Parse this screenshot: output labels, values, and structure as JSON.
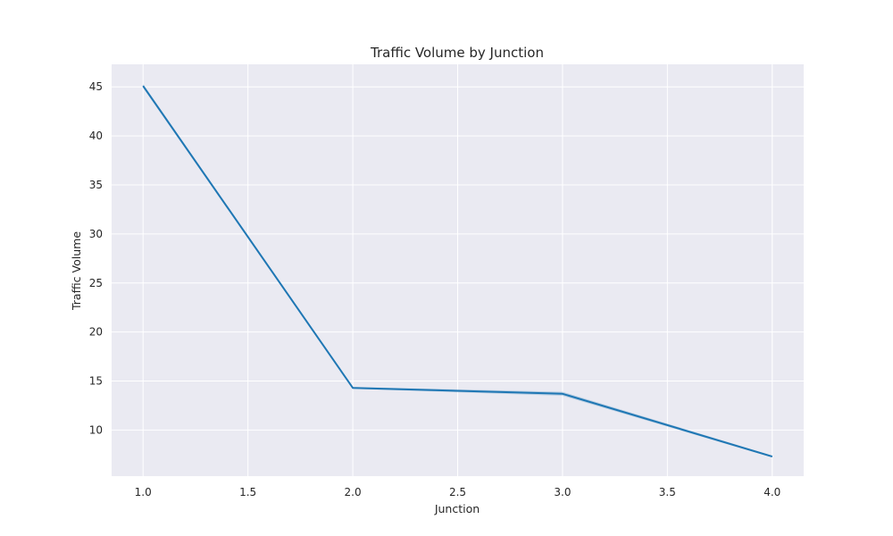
{
  "chart_data": {
    "type": "line",
    "title": "Traffic Volume by Junction",
    "xlabel": "Junction",
    "ylabel": "Traffic Volume",
    "xlim": [
      0.85,
      4.15
    ],
    "ylim": [
      5.3,
      47.3
    ],
    "xticks": [
      "1.0",
      "1.5",
      "2.0",
      "2.5",
      "3.0",
      "3.5",
      "4.0"
    ],
    "yticks": [
      "10",
      "15",
      "20",
      "25",
      "30",
      "35",
      "40",
      "45"
    ],
    "grid": true,
    "style": {
      "background": "#eaeaf2",
      "grid_color": "#ffffff",
      "line_color": "#1f77b4"
    },
    "series": [
      {
        "x": [
          1,
          2,
          3,
          4
        ],
        "y": [
          45.1,
          14.3,
          13.7,
          7.3
        ],
        "ci_low": [
          44.9,
          14.2,
          13.5,
          7.2
        ],
        "ci_high": [
          45.3,
          14.4,
          13.9,
          7.4
        ]
      }
    ]
  }
}
